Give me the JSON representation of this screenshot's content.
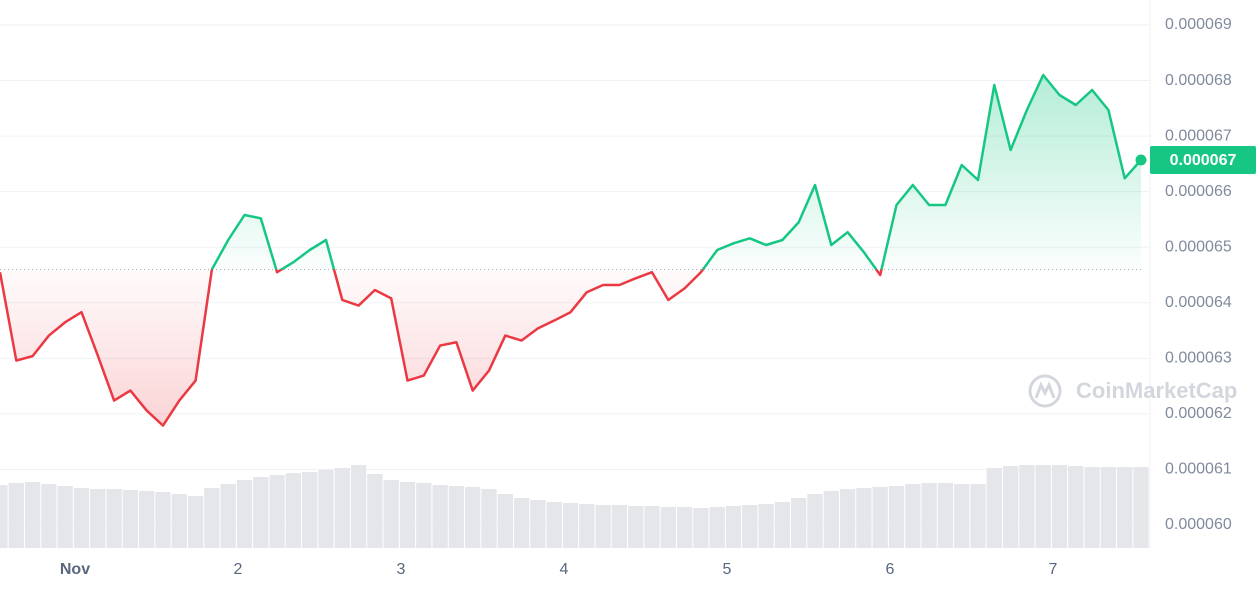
{
  "chart_data": {
    "type": "line",
    "x": [
      0.54,
      0.64,
      0.74,
      0.84,
      0.94,
      1.04,
      1.14,
      1.24,
      1.34,
      1.44,
      1.54,
      1.64,
      1.74,
      1.84,
      1.94,
      2.04,
      2.14,
      2.24,
      2.34,
      2.44,
      2.54,
      2.64,
      2.74,
      2.84,
      2.94,
      3.04,
      3.14,
      3.24,
      3.34,
      3.44,
      3.54,
      3.64,
      3.74,
      3.84,
      3.94,
      4.04,
      4.14,
      4.24,
      4.34,
      4.44,
      4.54,
      4.64,
      4.74,
      4.84,
      4.94,
      5.04,
      5.14,
      5.24,
      5.34,
      5.44,
      5.54,
      5.64,
      5.74,
      5.84,
      5.94,
      6.04,
      6.14,
      6.24,
      6.34,
      6.44,
      6.54,
      6.64,
      6.74,
      6.84,
      6.94,
      7.04,
      7.14,
      7.24,
      7.34,
      7.44,
      7.54
    ],
    "series": [
      {
        "color": "#16c784",
        "color_below": "#ea3943",
        "values": [
          6.455e-05,
          6.296e-05,
          6.304e-05,
          6.341e-05,
          6.365e-05,
          6.383e-05,
          6.305e-05,
          6.224e-05,
          6.242e-05,
          6.206e-05,
          6.179e-05,
          6.224e-05,
          6.26e-05,
          6.46e-05,
          6.513e-05,
          6.558e-05,
          6.552e-05,
          6.455e-05,
          6.473e-05,
          6.495e-05,
          6.513e-05,
          6.405e-05,
          6.395e-05,
          6.423e-05,
          6.408e-05,
          6.26e-05,
          6.269e-05,
          6.323e-05,
          6.329e-05,
          6.242e-05,
          6.278e-05,
          6.341e-05,
          6.332e-05,
          6.354e-05,
          6.368e-05,
          6.383e-05,
          6.419e-05,
          6.432e-05,
          6.432e-05,
          6.444e-05,
          6.455e-05,
          6.405e-05,
          6.426e-05,
          6.455e-05,
          6.495e-05,
          6.507e-05,
          6.516e-05,
          6.504e-05,
          6.513e-05,
          6.545e-05,
          6.612e-05,
          6.504e-05,
          6.527e-05,
          6.491e-05,
          6.45e-05,
          6.576e-05,
          6.612e-05,
          6.576e-05,
          6.576e-05,
          6.648e-05,
          6.621e-05,
          6.792e-05,
          6.675e-05,
          6.747e-05,
          6.81e-05,
          6.774e-05,
          6.756e-05,
          6.783e-05,
          6.747e-05,
          6.624e-05,
          6.657e-05
        ]
      }
    ],
    "baseline": 6.46e-05,
    "volume": [
      63,
      65,
      66,
      64,
      62,
      60,
      59,
      59,
      58,
      57,
      56,
      54,
      52,
      60,
      64,
      68,
      71,
      73,
      75,
      76,
      78,
      80,
      83,
      74,
      68,
      66,
      65,
      63,
      62,
      61,
      59,
      54,
      50,
      48,
      46,
      45,
      44,
      43,
      43,
      42,
      42,
      41,
      41,
      40,
      41,
      42,
      43,
      44,
      46,
      50,
      54,
      57,
      59,
      60,
      61,
      62,
      64,
      65,
      65,
      64,
      64,
      80,
      82,
      83,
      83,
      83,
      82,
      81,
      81,
      81,
      81
    ],
    "volume_color": "#e4e6ea",
    "ylim": [
      5.9586e-05,
      6.945e-05
    ],
    "yticks": [
      {
        "value": 6e-05,
        "label": "0.000060"
      },
      6.1e-05,
      6.2e-05,
      6.3e-05,
      6.4e-05,
      6.5e-05,
      6.6e-05,
      6.7e-05,
      6.8e-05,
      6.9e-05
    ],
    "xlim": [
      0.54,
      7.54
    ],
    "xticks": [
      {
        "value": 1,
        "label": "Nov"
      },
      2,
      3,
      4,
      5,
      6,
      7
    ],
    "grid": true,
    "current_price_label": "0.000067",
    "watermark": "CoinMarketCap"
  }
}
